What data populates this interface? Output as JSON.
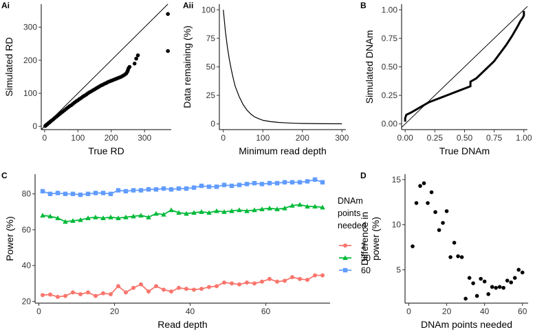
{
  "chart_data": [
    {
      "panel": "Ai",
      "type": "scatter",
      "xlabel": "True RD",
      "ylabel": "Simulated RD",
      "xlim": [
        -10,
        380
      ],
      "ylim": [
        -10,
        370
      ],
      "xticks": [
        0,
        100,
        200,
        300
      ],
      "yticks": [
        0,
        100,
        200,
        300
      ],
      "identity_line": true,
      "points": [
        [
          2,
          1
        ],
        [
          4,
          3
        ],
        [
          6,
          5
        ],
        [
          8,
          6
        ],
        [
          10,
          8
        ],
        [
          12,
          10
        ],
        [
          15,
          12
        ],
        [
          18,
          15
        ],
        [
          22,
          18
        ],
        [
          26,
          21
        ],
        [
          30,
          25
        ],
        [
          35,
          29
        ],
        [
          40,
          33
        ],
        [
          45,
          37
        ],
        [
          50,
          41
        ],
        [
          55,
          45
        ],
        [
          60,
          49
        ],
        [
          65,
          53
        ],
        [
          70,
          57
        ],
        [
          75,
          61
        ],
        [
          80,
          64
        ],
        [
          85,
          68
        ],
        [
          90,
          72
        ],
        [
          95,
          76
        ],
        [
          100,
          79
        ],
        [
          105,
          83
        ],
        [
          110,
          86
        ],
        [
          115,
          90
        ],
        [
          120,
          93
        ],
        [
          125,
          96
        ],
        [
          130,
          100
        ],
        [
          135,
          103
        ],
        [
          140,
          106
        ],
        [
          145,
          109
        ],
        [
          150,
          112
        ],
        [
          155,
          115
        ],
        [
          160,
          118
        ],
        [
          165,
          121
        ],
        [
          170,
          124
        ],
        [
          175,
          126
        ],
        [
          180,
          129
        ],
        [
          185,
          131
        ],
        [
          190,
          134
        ],
        [
          195,
          136
        ],
        [
          200,
          138
        ],
        [
          205,
          140
        ],
        [
          210,
          142
        ],
        [
          215,
          144
        ],
        [
          220,
          146
        ],
        [
          225,
          148
        ],
        [
          230,
          150
        ],
        [
          235,
          153
        ],
        [
          240,
          156
        ],
        [
          245,
          160
        ],
        [
          248,
          165
        ],
        [
          250,
          170
        ],
        [
          252,
          176
        ],
        [
          255,
          180
        ],
        [
          270,
          190
        ],
        [
          275,
          205
        ],
        [
          280,
          215
        ],
        [
          370,
          228
        ],
        [
          370,
          340
        ]
      ]
    },
    {
      "panel": "Aii",
      "type": "line",
      "xlabel": "Minimum read depth",
      "ylabel": "Data remaining (%)",
      "xlim": [
        -10,
        310
      ],
      "ylim": [
        -5,
        105
      ],
      "xticks": [
        0,
        100,
        200,
        300
      ],
      "yticks": [
        0,
        25,
        50,
        75,
        100
      ],
      "x": [
        0,
        5,
        10,
        15,
        20,
        25,
        30,
        40,
        50,
        60,
        70,
        80,
        90,
        100,
        120,
        140,
        160,
        180,
        200,
        250,
        300
      ],
      "values": [
        100,
        82,
        68,
        57,
        48,
        40,
        33,
        24,
        17,
        12,
        8.5,
        6,
        4.5,
        3.2,
        2,
        1.3,
        0.9,
        0.6,
        0.4,
        0.2,
        0.1
      ]
    },
    {
      "panel": "B",
      "type": "line",
      "xlabel": "True DNAm",
      "ylabel": "Simulated DNAm",
      "xlim": [
        -0.03,
        1.03
      ],
      "ylim": [
        -0.05,
        1.05
      ],
      "xticks": [
        0.0,
        0.25,
        0.5,
        0.75,
        1.0
      ],
      "xticklabels": [
        "0.00",
        "0.25",
        "0.50",
        "0.75",
        "1.00"
      ],
      "yticks": [
        0.0,
        0.25,
        0.5,
        0.75,
        1.0
      ],
      "yticklabels": [
        "0.00",
        "0.25",
        "0.50",
        "0.75",
        "1.00"
      ],
      "identity_line": true,
      "x": [
        0.0,
        0.0,
        0.01,
        0.05,
        0.1,
        0.15,
        0.2,
        0.25,
        0.3,
        0.35,
        0.4,
        0.45,
        0.5,
        0.55,
        0.55,
        0.6,
        0.65,
        0.7,
        0.75,
        0.8,
        0.85,
        0.9,
        0.95,
        0.97,
        0.99,
        1.0,
        1.0
      ],
      "values": [
        0.02,
        0.05,
        0.08,
        0.1,
        0.13,
        0.16,
        0.19,
        0.21,
        0.23,
        0.25,
        0.27,
        0.29,
        0.31,
        0.33,
        0.37,
        0.4,
        0.45,
        0.5,
        0.55,
        0.62,
        0.69,
        0.77,
        0.86,
        0.9,
        0.93,
        0.95,
        0.99
      ]
    },
    {
      "panel": "C",
      "type": "line",
      "xlabel": "Read depth",
      "ylabel": "Power (%)",
      "xlim": [
        -1,
        77
      ],
      "ylim": [
        19,
        91
      ],
      "xticks": [
        0,
        20,
        40,
        60
      ],
      "yticks": [
        20,
        40,
        60,
        80
      ],
      "legend_title": "DNAm\npoints\nneeded",
      "legend_position": "right",
      "categories": [
        1,
        3,
        5,
        7,
        9,
        11,
        13,
        15,
        17,
        19,
        21,
        23,
        25,
        27,
        29,
        31,
        33,
        35,
        37,
        39,
        41,
        43,
        45,
        47,
        49,
        51,
        53,
        55,
        57,
        59,
        61,
        63,
        65,
        67,
        69,
        71,
        73,
        75
      ],
      "series": [
        {
          "name": "2",
          "color": "#F8766D",
          "marker": "circle",
          "values": [
            23.5,
            23.8,
            22.5,
            23,
            25,
            24,
            25,
            23,
            24.5,
            24,
            28.5,
            25,
            27.5,
            29.5,
            25.5,
            28.5,
            26.5,
            25.5,
            27.5,
            27,
            26.5,
            27,
            28,
            28.5,
            30.5,
            30,
            29.5,
            30.5,
            30,
            31,
            32.5,
            31,
            31.5,
            33.5,
            32.5,
            32,
            34.5,
            34.5
          ]
        },
        {
          "name": "30",
          "color": "#00BA38",
          "marker": "triangle",
          "values": [
            68,
            67.5,
            66.5,
            64.5,
            65,
            65.5,
            66.5,
            67,
            66.5,
            67,
            66.5,
            67,
            67.5,
            68,
            67,
            69,
            68.5,
            71,
            69.5,
            69,
            69.5,
            70,
            69.5,
            70.5,
            70,
            70.5,
            71,
            70.5,
            71,
            71.5,
            72,
            71.5,
            72,
            73.5,
            74,
            73,
            73,
            72.5
          ]
        },
        {
          "name": "60",
          "color": "#619CFF",
          "marker": "square",
          "values": [
            81.5,
            80,
            80.5,
            80,
            80,
            79.5,
            80,
            80.5,
            80.5,
            80,
            82,
            81.5,
            82,
            82,
            82.5,
            82.5,
            83,
            82.5,
            83,
            83,
            83.5,
            84.5,
            84,
            84,
            85,
            84.5,
            85,
            85.5,
            86,
            85.5,
            86,
            86,
            86.5,
            86.5,
            86.5,
            87,
            88,
            86.5
          ]
        }
      ]
    },
    {
      "panel": "D",
      "type": "scatter",
      "xlabel": "DNAm points needed",
      "ylabel": "Difference in\npower (%)",
      "xlim": [
        -2,
        63
      ],
      "ylim": [
        1.3,
        15.6
      ],
      "xticks": [
        0,
        20,
        40,
        60
      ],
      "yticks": [
        5,
        10,
        15
      ],
      "points": [
        [
          2,
          7.6
        ],
        [
          4,
          12.4
        ],
        [
          6,
          14.3
        ],
        [
          8,
          14.6
        ],
        [
          10,
          12.4
        ],
        [
          12,
          13.6
        ],
        [
          14,
          11.4
        ],
        [
          16,
          9.4
        ],
        [
          18,
          10.2
        ],
        [
          20,
          11.5
        ],
        [
          22,
          6.4
        ],
        [
          24,
          8.0
        ],
        [
          26,
          6.5
        ],
        [
          28,
          6.4
        ],
        [
          30,
          1.8
        ],
        [
          32,
          4.1
        ],
        [
          34,
          3.5
        ],
        [
          36,
          2.1
        ],
        [
          38,
          4.0
        ],
        [
          40,
          3.7
        ],
        [
          42,
          2.3
        ],
        [
          44,
          3.1
        ],
        [
          46,
          3.0
        ],
        [
          48,
          3.1
        ],
        [
          50,
          3.0
        ],
        [
          52,
          3.8
        ],
        [
          54,
          3.6
        ],
        [
          56,
          4.1
        ],
        [
          58,
          5.0
        ],
        [
          60,
          4.7
        ]
      ]
    }
  ]
}
